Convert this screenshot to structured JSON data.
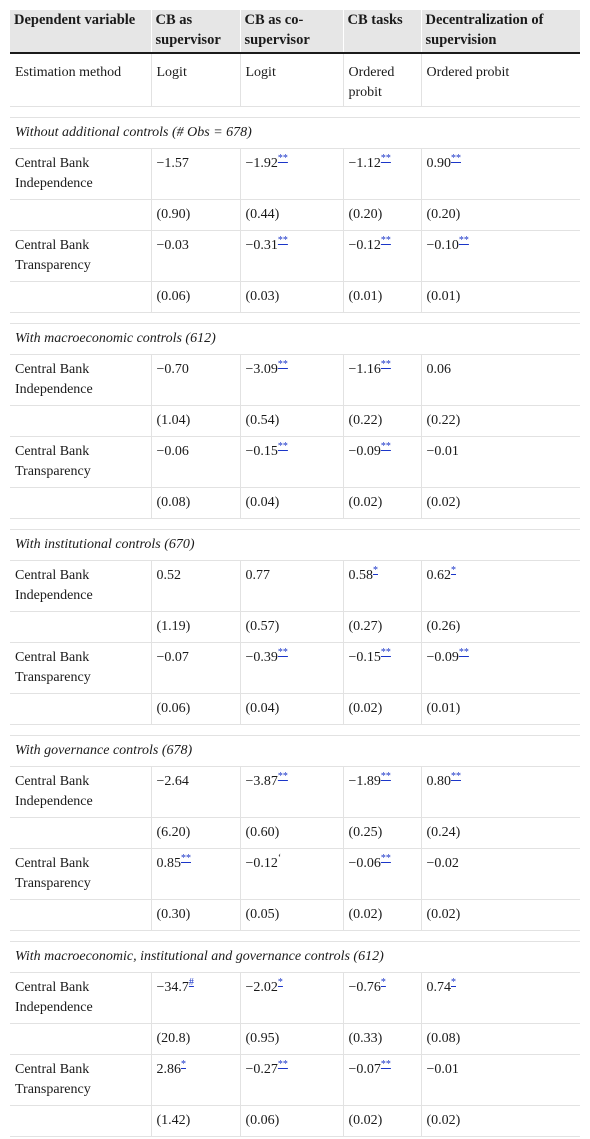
{
  "header": [
    "Dependent variable",
    "CB as supervisor",
    "CB as co-supervisor",
    "CB tasks",
    "Decentralization of supervision"
  ],
  "estimation": [
    "Estimation method",
    "Logit",
    "Logit",
    "Ordered probit",
    "Ordered probit"
  ],
  "sections": [
    {
      "title": "Without additional controls (# Obs = 678)",
      "rows": [
        {
          "label": "Central Bank Independence",
          "vals": [
            {
              "v": "−1.57",
              "s": ""
            },
            {
              "v": "−1.92",
              "s": "**"
            },
            {
              "v": "−1.12",
              "s": "**"
            },
            {
              "v": "0.90",
              "s": "**"
            }
          ],
          "se": [
            "(0.90)",
            "(0.44)",
            "(0.20)",
            "(0.20)"
          ]
        },
        {
          "label": "Central Bank Transparency",
          "vals": [
            {
              "v": "−0.03",
              "s": ""
            },
            {
              "v": "−0.31",
              "s": "**"
            },
            {
              "v": "−0.12",
              "s": "**"
            },
            {
              "v": "−0.10",
              "s": "**"
            }
          ],
          "se": [
            "(0.06)",
            "(0.03)",
            "(0.01)",
            "(0.01)"
          ]
        }
      ]
    },
    {
      "title": "With macroeconomic controls (612)",
      "rows": [
        {
          "label": "Central Bank Independence",
          "vals": [
            {
              "v": "−0.70",
              "s": ""
            },
            {
              "v": "−3.09",
              "s": "**"
            },
            {
              "v": "−1.16",
              "s": "**"
            },
            {
              "v": "0.06",
              "s": ""
            }
          ],
          "se": [
            "(1.04)",
            "(0.54)",
            "(0.22)",
            "(0.22)"
          ]
        },
        {
          "label": "Central Bank Transparency",
          "vals": [
            {
              "v": "−0.06",
              "s": ""
            },
            {
              "v": "−0.15",
              "s": "**"
            },
            {
              "v": "−0.09",
              "s": "**"
            },
            {
              "v": "−0.01",
              "s": ""
            }
          ],
          "se": [
            "(0.08)",
            "(0.04)",
            "(0.02)",
            "(0.02)"
          ]
        }
      ]
    },
    {
      "title": "With institutional controls (670)",
      "rows": [
        {
          "label": "Central Bank Independence",
          "vals": [
            {
              "v": "0.52",
              "s": ""
            },
            {
              "v": "0.77",
              "s": ""
            },
            {
              "v": "0.58",
              "s": "*"
            },
            {
              "v": "0.62",
              "s": "*"
            }
          ],
          "se": [
            "(1.19)",
            "(0.57)",
            "(0.27)",
            "(0.26)"
          ]
        },
        {
          "label": "Central Bank Transparency",
          "vals": [
            {
              "v": "−0.07",
              "s": ""
            },
            {
              "v": "−0.39",
              "s": "**"
            },
            {
              "v": "−0.15",
              "s": "**"
            },
            {
              "v": "−0.09",
              "s": "**"
            }
          ],
          "se": [
            "(0.06)",
            "(0.04)",
            "(0.02)",
            "(0.01)"
          ]
        }
      ]
    },
    {
      "title": "With governance controls (678)",
      "rows": [
        {
          "label": "Central Bank Independence",
          "vals": [
            {
              "v": "−2.64",
              "s": ""
            },
            {
              "v": "−3.87",
              "s": "**"
            },
            {
              "v": "−1.89",
              "s": "**"
            },
            {
              "v": "0.80",
              "s": "**"
            }
          ],
          "se": [
            "(6.20)",
            "(0.60)",
            "(0.25)",
            "(0.24)"
          ]
        },
        {
          "label": "Central Bank Transparency",
          "vals": [
            {
              "v": "0.85",
              "s": "**"
            },
            {
              "v": "−0.12",
              "s": "ʻ"
            },
            {
              "v": "−0.06",
              "s": "**"
            },
            {
              "v": "−0.02",
              "s": ""
            }
          ],
          "se": [
            "(0.30)",
            "(0.05)",
            "(0.02)",
            "(0.02)"
          ]
        }
      ]
    },
    {
      "title": "With macroeconomic, institutional and governance controls (612)",
      "rows": [
        {
          "label": "Central Bank Independence",
          "vals": [
            {
              "v": "−34.7",
              "s": "#"
            },
            {
              "v": "−2.02",
              "s": "*"
            },
            {
              "v": "−0.76",
              "s": "*"
            },
            {
              "v": "0.74",
              "s": "*"
            }
          ],
          "se": [
            "(20.8)",
            "(0.95)",
            "(0.33)",
            "(0.08)"
          ]
        },
        {
          "label": "Central Bank Transparency",
          "vals": [
            {
              "v": "2.86",
              "s": "*"
            },
            {
              "v": "−0.27",
              "s": "**"
            },
            {
              "v": "−0.07",
              "s": "**"
            },
            {
              "v": "−0.01",
              "s": ""
            }
          ],
          "se": [
            "(1.42)",
            "(0.06)",
            "(0.02)",
            "(0.02)"
          ]
        }
      ]
    }
  ]
}
